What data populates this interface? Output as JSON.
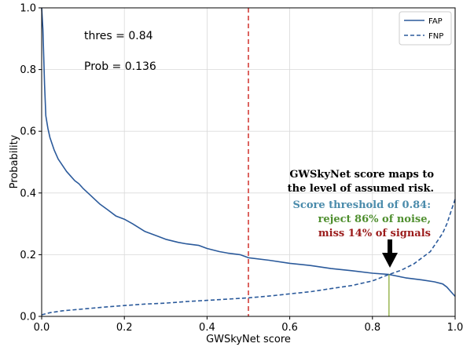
{
  "chart_data": {
    "type": "line",
    "xlabel": "GWSkyNet score",
    "ylabel": "Probability",
    "xlim": [
      0.0,
      1.0
    ],
    "ylim": [
      0.0,
      1.0
    ],
    "grid": true,
    "legend_placement": "top-right",
    "x_ticks": [
      "0.0",
      "0.2",
      "0.4",
      "0.6",
      "0.8",
      "1.0"
    ],
    "y_ticks": [
      "0.0",
      "0.2",
      "0.4",
      "0.6",
      "0.8",
      "1.0"
    ],
    "series": [
      {
        "name": "FAP",
        "style": "solid",
        "color": "#2b5a9b",
        "x": [
          0.0,
          0.003,
          0.007,
          0.01,
          0.015,
          0.02,
          0.03,
          0.04,
          0.05,
          0.06,
          0.07,
          0.08,
          0.09,
          0.1,
          0.12,
          0.14,
          0.16,
          0.18,
          0.2,
          0.22,
          0.25,
          0.28,
          0.3,
          0.33,
          0.35,
          0.38,
          0.4,
          0.43,
          0.45,
          0.48,
          0.5,
          0.55,
          0.6,
          0.65,
          0.7,
          0.75,
          0.8,
          0.84,
          0.88,
          0.92,
          0.95,
          0.97,
          0.98,
          0.99,
          1.0
        ],
        "y": [
          1.0,
          0.93,
          0.75,
          0.65,
          0.61,
          0.58,
          0.54,
          0.51,
          0.49,
          0.47,
          0.455,
          0.44,
          0.43,
          0.415,
          0.39,
          0.365,
          0.345,
          0.325,
          0.315,
          0.3,
          0.275,
          0.26,
          0.25,
          0.24,
          0.235,
          0.23,
          0.22,
          0.21,
          0.205,
          0.2,
          0.19,
          0.182,
          0.172,
          0.165,
          0.155,
          0.148,
          0.14,
          0.136,
          0.125,
          0.118,
          0.112,
          0.105,
          0.095,
          0.08,
          0.065
        ]
      },
      {
        "name": "FNP",
        "style": "dashed",
        "color": "#2b5a9b",
        "x": [
          0.0,
          0.02,
          0.05,
          0.1,
          0.15,
          0.2,
          0.25,
          0.3,
          0.35,
          0.4,
          0.45,
          0.5,
          0.55,
          0.6,
          0.65,
          0.7,
          0.75,
          0.8,
          0.84,
          0.87,
          0.9,
          0.92,
          0.94,
          0.95,
          0.96,
          0.97,
          0.98,
          0.99,
          1.0
        ],
        "y": [
          0.005,
          0.012,
          0.018,
          0.024,
          0.03,
          0.035,
          0.04,
          0.043,
          0.048,
          0.052,
          0.056,
          0.06,
          0.066,
          0.073,
          0.08,
          0.09,
          0.1,
          0.115,
          0.136,
          0.15,
          0.17,
          0.19,
          0.21,
          0.23,
          0.25,
          0.27,
          0.3,
          0.34,
          0.38
        ]
      }
    ],
    "vertical_line": {
      "x": 0.5,
      "color": "#d9534f",
      "style": "dashed"
    },
    "marker_line": {
      "x": 0.84,
      "y": 0.136,
      "color": "#8bab3a"
    },
    "inset_text": {
      "thres": "thres = 0.84",
      "prob": "Prob = 0.136"
    },
    "annotations": {
      "line1": "GWSkyNet score maps to",
      "line2": "the level of assumed risk.",
      "line3": "Score threshold of 0.84:",
      "line4": "reject 86% of noise,",
      "line5": "miss 14% of signals",
      "color_line1": "#000000",
      "color_line3": "#4a8bab",
      "color_line4": "#4f8f2f",
      "color_line5": "#9b1b1b"
    }
  }
}
